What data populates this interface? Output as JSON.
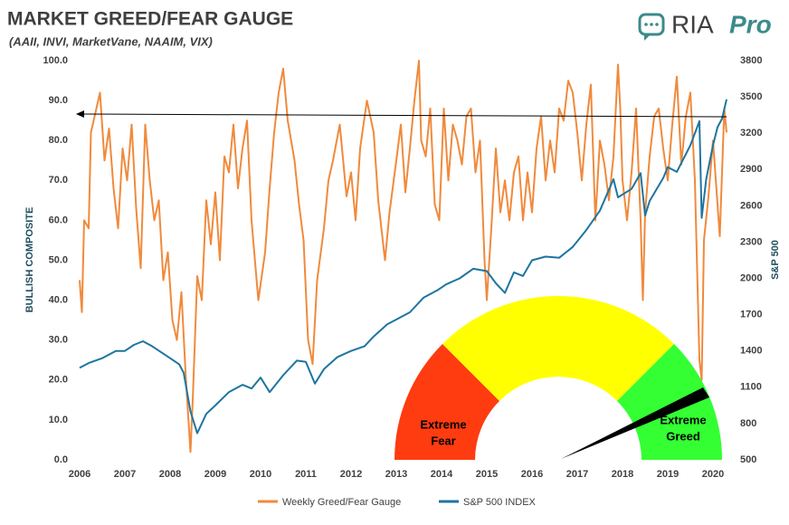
{
  "logo": {
    "name": "RIA",
    "suffix": "Pro"
  },
  "chart_data": {
    "type": "line",
    "title": "MARKET GREED/FEAR GAUGE",
    "subtitle": "(AAII, INVI, MarketVane, NAAIM, VIX)",
    "ylabel": "BULLISH COMPOSITE",
    "y2label": "S&P 500",
    "annotations": [
      [
        "Extreme",
        "Fear"
      ],
      [
        "Extreme",
        "Greed"
      ]
    ],
    "legend": "bottom",
    "grid": false,
    "xlim": [
      2006,
      2020.3
    ],
    "xticks": [
      2006,
      2007,
      2008,
      2009,
      2010,
      2011,
      2012,
      2013,
      2014,
      2015,
      2016,
      2017,
      2018,
      2019,
      2020
    ],
    "ylim": [
      0,
      100
    ],
    "yticks": [
      {
        "value": 0,
        "label": "0.0"
      },
      {
        "value": 10,
        "label": "10.0"
      },
      {
        "value": 20,
        "label": "20.0"
      },
      {
        "value": 30,
        "label": "30.0"
      },
      {
        "value": 40,
        "label": "40.0"
      },
      {
        "value": 50,
        "label": "50.0"
      },
      {
        "value": 60,
        "label": "60.0"
      },
      {
        "value": 70,
        "label": "70.0"
      },
      {
        "value": 80,
        "label": "80.0"
      },
      {
        "value": 90,
        "label": "90.0"
      },
      {
        "value": 100,
        "label": "100.0"
      }
    ],
    "y2lim": [
      500,
      3800
    ],
    "y2ticks": [
      500,
      800,
      1100,
      1400,
      1700,
      2000,
      2300,
      2600,
      2900,
      3200,
      3500,
      3800
    ],
    "series": [
      {
        "name": "Weekly Greed/Fear Gauge",
        "color": "#f08a3c",
        "x": [
          2006.0,
          2006.05,
          2006.1,
          2006.2,
          2006.25,
          2006.35,
          2006.45,
          2006.55,
          2006.65,
          2006.75,
          2006.85,
          2006.95,
          2007.05,
          2007.15,
          2007.25,
          2007.35,
          2007.45,
          2007.55,
          2007.65,
          2007.75,
          2007.85,
          2007.95,
          2008.05,
          2008.15,
          2008.25,
          2008.35,
          2008.45,
          2008.5,
          2008.6,
          2008.7,
          2008.8,
          2008.9,
          2009.0,
          2009.1,
          2009.2,
          2009.3,
          2009.4,
          2009.5,
          2009.6,
          2009.7,
          2009.8,
          2009.95,
          2010.1,
          2010.2,
          2010.3,
          2010.4,
          2010.5,
          2010.6,
          2010.75,
          2010.85,
          2010.95,
          2011.05,
          2011.15,
          2011.25,
          2011.4,
          2011.5,
          2011.6,
          2011.75,
          2011.9,
          2012.0,
          2012.1,
          2012.2,
          2012.35,
          2012.5,
          2012.6,
          2012.75,
          2012.85,
          2013.0,
          2013.1,
          2013.2,
          2013.3,
          2013.4,
          2013.5,
          2013.55,
          2013.65,
          2013.75,
          2013.85,
          2013.95,
          2014.05,
          2014.15,
          2014.25,
          2014.35,
          2014.45,
          2014.55,
          2014.65,
          2014.75,
          2014.85,
          2014.95,
          2015.0,
          2015.1,
          2015.2,
          2015.3,
          2015.4,
          2015.5,
          2015.6,
          2015.7,
          2015.8,
          2015.9,
          2016.0,
          2016.1,
          2016.2,
          2016.3,
          2016.4,
          2016.5,
          2016.6,
          2016.7,
          2016.8,
          2016.9,
          2017.0,
          2017.1,
          2017.2,
          2017.3,
          2017.4,
          2017.5,
          2017.6,
          2017.7,
          2017.8,
          2017.9,
          2017.95,
          2018.0,
          2018.1,
          2018.2,
          2018.3,
          2018.4,
          2018.45,
          2018.5,
          2018.6,
          2018.7,
          2018.8,
          2018.9,
          2019.0,
          2019.1,
          2019.2,
          2019.3,
          2019.4,
          2019.5,
          2019.6,
          2019.7,
          2019.75,
          2019.8,
          2019.9,
          2020.0,
          2020.1,
          2020.15,
          2020.2,
          2020.25,
          2020.3
        ],
        "values": [
          45,
          37,
          60,
          58,
          82,
          87,
          92,
          75,
          83,
          68,
          58,
          78,
          70,
          84,
          63,
          48,
          84,
          70,
          60,
          65,
          45,
          52,
          35,
          30,
          42,
          20,
          2,
          15,
          46,
          40,
          65,
          54,
          67,
          50,
          76,
          72,
          84,
          68,
          78,
          85,
          60,
          40,
          52,
          68,
          82,
          92,
          98,
          85,
          75,
          64,
          55,
          30,
          24,
          45,
          58,
          70,
          75,
          84,
          66,
          72,
          60,
          78,
          90,
          82,
          65,
          50,
          62,
          75,
          84,
          67,
          78,
          90,
          100,
          80,
          76,
          88,
          64,
          60,
          88,
          70,
          84,
          80,
          74,
          86,
          88,
          72,
          80,
          50,
          40,
          58,
          78,
          62,
          70,
          60,
          72,
          76,
          60,
          72,
          62,
          78,
          86,
          70,
          80,
          72,
          88,
          85,
          95,
          92,
          82,
          70,
          84,
          94,
          60,
          80,
          74,
          65,
          76,
          99,
          88,
          70,
          60,
          72,
          88,
          60,
          40,
          62,
          76,
          86,
          88,
          78,
          70,
          84,
          96,
          74,
          86,
          92,
          70,
          25,
          20,
          55,
          66,
          80,
          64,
          56,
          72,
          88,
          82
        ]
      },
      {
        "name": "S&P 500 INDEX",
        "color": "#1d75a0",
        "axis": "y2",
        "x": [
          2006.0,
          2006.2,
          2006.5,
          2006.8,
          2007.0,
          2007.2,
          2007.4,
          2007.6,
          2007.8,
          2008.0,
          2008.2,
          2008.3,
          2008.45,
          2008.6,
          2008.8,
          2009.0,
          2009.3,
          2009.6,
          2009.8,
          2010.0,
          2010.2,
          2010.5,
          2010.8,
          2011.0,
          2011.2,
          2011.4,
          2011.7,
          2012.0,
          2012.3,
          2012.5,
          2012.8,
          2013.0,
          2013.3,
          2013.6,
          2013.9,
          2014.1,
          2014.4,
          2014.7,
          2015.0,
          2015.2,
          2015.4,
          2015.6,
          2015.8,
          2016.0,
          2016.3,
          2016.6,
          2016.9,
          2017.2,
          2017.5,
          2017.8,
          2017.9,
          2018.2,
          2018.4,
          2018.5,
          2018.6,
          2018.9,
          2019.0,
          2019.2,
          2019.5,
          2019.7,
          2019.75,
          2019.85,
          2020.0,
          2020.1,
          2020.2,
          2020.3
        ],
        "values": [
          1260,
          1300,
          1340,
          1400,
          1400,
          1450,
          1480,
          1440,
          1390,
          1340,
          1290,
          1220,
          900,
          720,
          880,
          950,
          1060,
          1120,
          1090,
          1180,
          1060,
          1200,
          1320,
          1310,
          1130,
          1250,
          1350,
          1400,
          1440,
          1520,
          1620,
          1660,
          1720,
          1840,
          1900,
          1950,
          2000,
          2080,
          2060,
          1960,
          1880,
          2050,
          2020,
          2150,
          2180,
          2170,
          2260,
          2400,
          2560,
          2820,
          2670,
          2740,
          2870,
          2520,
          2640,
          2830,
          2920,
          2880,
          3100,
          3300,
          2500,
          2820,
          3100,
          3250,
          3320,
          3480
        ]
      }
    ]
  }
}
